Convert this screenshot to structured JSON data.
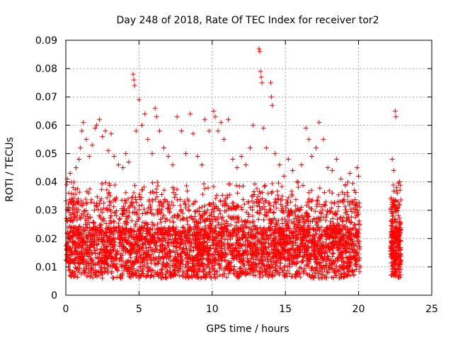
{
  "chart_data": {
    "type": "scatter",
    "title": "Day 248 of 2018, Rate Of TEC Index for receiver tor2",
    "xlabel": "GPS time / hours",
    "ylabel": "ROTI / TECUs",
    "xlim": [
      0,
      25
    ],
    "ylim": [
      0,
      0.09
    ],
    "xticks": [
      0,
      5,
      10,
      15,
      20,
      25
    ],
    "xtick_labels": [
      "0",
      "5",
      "10",
      "15",
      "20",
      "25"
    ],
    "yticks": [
      0,
      0.01,
      0.02,
      0.03,
      0.04,
      0.05,
      0.06,
      0.07,
      0.08,
      0.09
    ],
    "ytick_labels": [
      "0",
      "0.01",
      "0.02",
      "0.03",
      "0.04",
      "0.05",
      "0.06",
      "0.07",
      "0.08",
      "0.09"
    ],
    "grid": true,
    "marker": "+",
    "color": "#ff0000",
    "data_gap": [
      20.1,
      22.2
    ],
    "series": [
      {
        "points": [
          [
            0.1,
            0.041
          ],
          [
            0.2,
            0.036
          ],
          [
            0.3,
            0.043
          ],
          [
            0.5,
            0.038
          ],
          [
            0.7,
            0.045
          ],
          [
            0.9,
            0.048
          ],
          [
            1.0,
            0.052
          ],
          [
            1.1,
            0.058
          ],
          [
            1.2,
            0.061
          ],
          [
            1.4,
            0.055
          ],
          [
            1.6,
            0.049
          ],
          [
            1.8,
            0.053
          ],
          [
            2.0,
            0.059
          ],
          [
            2.1,
            0.06
          ],
          [
            2.3,
            0.062
          ],
          [
            2.5,
            0.056
          ],
          [
            2.7,
            0.058
          ],
          [
            2.9,
            0.051
          ],
          [
            3.1,
            0.057
          ],
          [
            3.3,
            0.049
          ],
          [
            3.6,
            0.046
          ],
          [
            3.9,
            0.045
          ],
          [
            4.1,
            0.05
          ],
          [
            4.3,
            0.047
          ],
          [
            4.6,
            0.078
          ],
          [
            4.65,
            0.076
          ],
          [
            4.7,
            0.074
          ],
          [
            4.8,
            0.058
          ],
          [
            5.0,
            0.069
          ],
          [
            5.2,
            0.06
          ],
          [
            5.4,
            0.064
          ],
          [
            5.6,
            0.055
          ],
          [
            5.9,
            0.05
          ],
          [
            6.1,
            0.066
          ],
          [
            6.2,
            0.063
          ],
          [
            6.4,
            0.058
          ],
          [
            6.7,
            0.052
          ],
          [
            7.0,
            0.049
          ],
          [
            7.3,
            0.046
          ],
          [
            7.6,
            0.063
          ],
          [
            7.9,
            0.058
          ],
          [
            8.2,
            0.05
          ],
          [
            8.5,
            0.064
          ],
          [
            8.7,
            0.057
          ],
          [
            9.0,
            0.049
          ],
          [
            9.3,
            0.046
          ],
          [
            9.5,
            0.062
          ],
          [
            9.8,
            0.058
          ],
          [
            10.1,
            0.065
          ],
          [
            10.2,
            0.063
          ],
          [
            10.4,
            0.058
          ],
          [
            10.6,
            0.061
          ],
          [
            10.8,
            0.055
          ],
          [
            11.1,
            0.062
          ],
          [
            11.4,
            0.048
          ],
          [
            11.7,
            0.045
          ],
          [
            12.0,
            0.049
          ],
          [
            12.3,
            0.046
          ],
          [
            12.6,
            0.052
          ],
          [
            12.8,
            0.06
          ],
          [
            13.2,
            0.087
          ],
          [
            13.25,
            0.086
          ],
          [
            13.3,
            0.079
          ],
          [
            13.35,
            0.077
          ],
          [
            13.4,
            0.075
          ],
          [
            13.5,
            0.059
          ],
          [
            13.7,
            0.052
          ],
          [
            14.0,
            0.075
          ],
          [
            14.05,
            0.07
          ],
          [
            14.1,
            0.067
          ],
          [
            14.3,
            0.05
          ],
          [
            14.6,
            0.046
          ],
          [
            14.9,
            0.042
          ],
          [
            15.2,
            0.048
          ],
          [
            15.5,
            0.044
          ],
          [
            15.8,
            0.04
          ],
          [
            16.1,
            0.046
          ],
          [
            16.4,
            0.059
          ],
          [
            16.6,
            0.055
          ],
          [
            16.8,
            0.049
          ],
          [
            17.1,
            0.052
          ],
          [
            17.3,
            0.061
          ],
          [
            17.6,
            0.055
          ],
          [
            17.9,
            0.045
          ],
          [
            18.2,
            0.044
          ],
          [
            18.5,
            0.048
          ],
          [
            18.8,
            0.041
          ],
          [
            19.1,
            0.039
          ],
          [
            19.4,
            0.043
          ],
          [
            19.7,
            0.037
          ],
          [
            19.9,
            0.045
          ],
          [
            20.0,
            0.042
          ],
          [
            22.3,
            0.048
          ],
          [
            22.4,
            0.044
          ],
          [
            22.5,
            0.065
          ],
          [
            22.55,
            0.063
          ],
          [
            22.6,
            0.038
          ],
          [
            22.8,
            0.04
          ]
        ]
      }
    ]
  }
}
